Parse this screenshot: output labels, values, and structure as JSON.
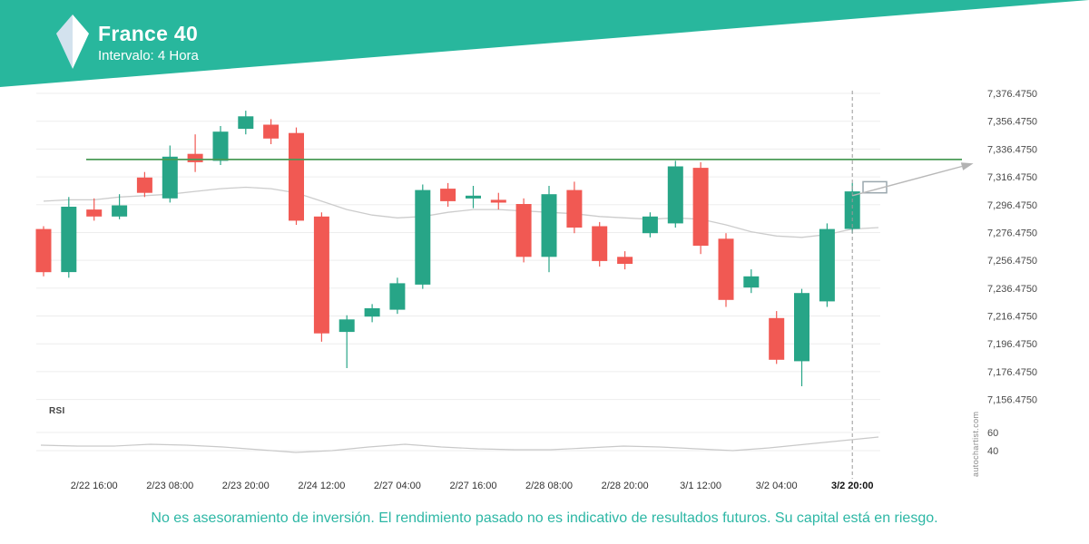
{
  "header": {
    "title": "France 40",
    "subtitle": "Intervalo: 4 Hora"
  },
  "watermark": "autochartist.com",
  "footer": {
    "disclaimer": "No es asesoramiento de inversión. El rendimiento pasado no es indicativo de resultados futuros. Su capital está en riesgo."
  },
  "colors": {
    "header_bg": "#28b79d",
    "candle_up": "#27a587",
    "candle_down": "#f15953",
    "resistance": "#4a9b57",
    "ma_line": "#cccccc",
    "rsi_line": "#c9c9c9",
    "footer_text": "#2db7a5"
  },
  "chart_data": {
    "type": "candlestick",
    "title": "France 40",
    "interval": "4 Hora",
    "price_axis": {
      "max": 7376.475,
      "min": 7156.475,
      "values": [
        7376.475,
        7356.475,
        7336.475,
        7316.475,
        7296.475,
        7276.475,
        7256.475,
        7236.475,
        7216.475,
        7196.475,
        7176.475,
        7156.475
      ],
      "labels": [
        "7,376.4750",
        "7,356.4750",
        "7,336.4750",
        "7,316.4750",
        "7,296.4750",
        "7,276.4750",
        "7,256.4750",
        "7,236.4750",
        "7,216.4750",
        "7,196.4750",
        "7,176.4750",
        "7,156.4750"
      ]
    },
    "time_axis": {
      "labels": [
        "2/22 16:00",
        "2/23 08:00",
        "2/23 20:00",
        "2/24 12:00",
        "2/27 04:00",
        "2/27 16:00",
        "2/28 08:00",
        "2/28 20:00",
        "3/1 12:00",
        "3/2 04:00",
        "3/2 20:00"
      ],
      "first_label_candle_index": 2,
      "label_every_n_candles": 3,
      "bold_last": true
    },
    "candles_ohlc": [
      [
        7279,
        7281,
        7245,
        7248
      ],
      [
        7248,
        7302,
        7244,
        7295
      ],
      [
        7293,
        7301,
        7285,
        7288
      ],
      [
        7288,
        7304,
        7286,
        7296
      ],
      [
        7316,
        7320,
        7302,
        7305
      ],
      [
        7301,
        7339,
        7298,
        7331
      ],
      [
        7333,
        7347,
        7320,
        7327
      ],
      [
        7328,
        7353,
        7325,
        7349
      ],
      [
        7351,
        7364,
        7347,
        7360
      ],
      [
        7354,
        7358,
        7340,
        7344
      ],
      [
        7348,
        7352,
        7282,
        7285
      ],
      [
        7288,
        7291,
        7198,
        7204
      ],
      [
        7205,
        7217,
        7179,
        7214
      ],
      [
        7216,
        7225,
        7212,
        7222
      ],
      [
        7221,
        7244,
        7218,
        7240
      ],
      [
        7239,
        7311,
        7236,
        7307
      ],
      [
        7308,
        7312,
        7295,
        7299
      ],
      [
        7301,
        7310,
        7294,
        7303
      ],
      [
        7300,
        7305,
        7293,
        7298
      ],
      [
        7297,
        7301,
        7255,
        7259
      ],
      [
        7259,
        7310,
        7248,
        7304
      ],
      [
        7307,
        7313,
        7276,
        7280
      ],
      [
        7281,
        7284,
        7252,
        7256
      ],
      [
        7259,
        7263,
        7250,
        7254
      ],
      [
        7276,
        7291,
        7273,
        7288
      ],
      [
        7283,
        7328,
        7280,
        7324
      ],
      [
        7323,
        7327,
        7261,
        7267
      ],
      [
        7272,
        7276,
        7223,
        7228
      ],
      [
        7237,
        7250,
        7233,
        7245
      ],
      [
        7215,
        7220,
        7182,
        7185
      ],
      [
        7184,
        7236,
        7166,
        7233
      ],
      [
        7227,
        7283,
        7223,
        7279
      ],
      [
        7279,
        7312,
        7276,
        7306
      ]
    ],
    "ma_line": [
      7299,
      7300,
      7300,
      7302,
      7303,
      7304,
      7306,
      7308,
      7309,
      7308,
      7305,
      7299,
      7293,
      7289,
      7287,
      7288,
      7291,
      7293,
      7293,
      7292,
      7291,
      7290,
      7288,
      7287,
      7286,
      7287,
      7286,
      7282,
      7277,
      7274,
      7273,
      7275,
      7279
    ],
    "ma_extension": 7280,
    "resistance_line": {
      "price": 7329
    },
    "forecast": {
      "direction": "up",
      "arrow_from_price": 7303,
      "arrow_to_price": 7324,
      "box_price_top": 7313,
      "box_price_bottom": 7305
    },
    "rsi": {
      "label": "RSI",
      "axis_values": [
        60,
        40
      ],
      "axis_labels": [
        "60",
        "40"
      ],
      "range_shown": [
        40,
        60
      ],
      "values": [
        46,
        45,
        45,
        47,
        46,
        44,
        41,
        38,
        40,
        44,
        47,
        44,
        42,
        41,
        41,
        43,
        45,
        44,
        42,
        40,
        43,
        47,
        51,
        55
      ]
    }
  }
}
